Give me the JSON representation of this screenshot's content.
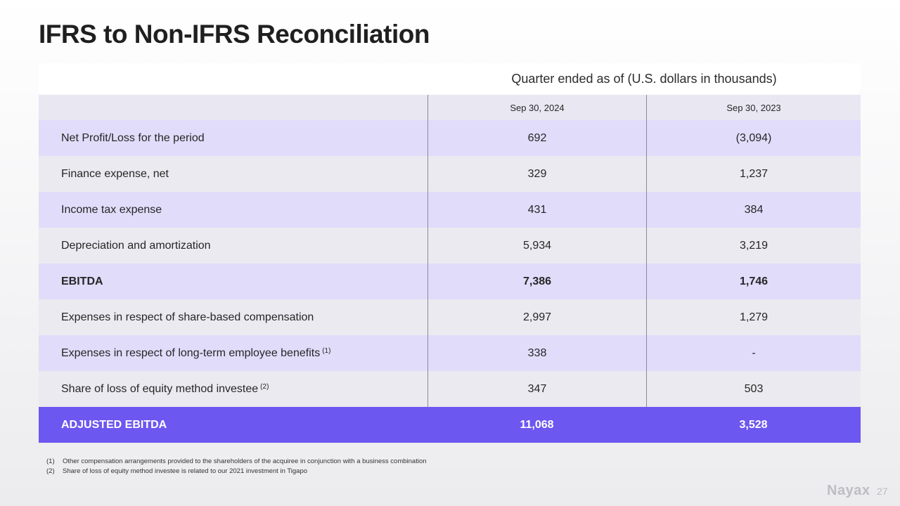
{
  "title": "IFRS to Non-IFRS Reconciliation",
  "table": {
    "caption": "Quarter ended as of (U.S. dollars in thousands)",
    "columns": [
      "Sep 30, 2024",
      "Sep 30, 2023"
    ],
    "rows": [
      {
        "label": "Net Profit/Loss for the period",
        "sup": "",
        "v1": "692",
        "v2": "(3,094)"
      },
      {
        "label": "Finance expense, net",
        "sup": "",
        "v1": "329",
        "v2": "1,237"
      },
      {
        "label": "Income tax expense",
        "sup": "",
        "v1": "431",
        "v2": "384"
      },
      {
        "label": "Depreciation and amortization",
        "sup": "",
        "v1": "5,934",
        "v2": "3,219"
      },
      {
        "label": "EBITDA",
        "sup": "",
        "v1": "7,386",
        "v2": "1,746"
      },
      {
        "label": "Expenses in respect of share-based compensation",
        "sup": "",
        "v1": "2,997",
        "v2": "1,279"
      },
      {
        "label": "Expenses in respect of long-term employee benefits",
        "sup": "(1)",
        "v1": "338",
        "v2": "-"
      },
      {
        "label": "Share of loss of equity method investee",
        "sup": "(2)",
        "v1": "347",
        "v2": "503"
      }
    ],
    "total": {
      "label": "ADJUSTED EBITDA",
      "v1": "11,068",
      "v2": "3,528"
    }
  },
  "footnotes": [
    {
      "num": "(1)",
      "text": "Other compensation arrangements provided to the shareholders of the acquiree in conjunction with a business combination"
    },
    {
      "num": "(2)",
      "text": "Share of loss of equity method investee is related to our 2021 investment in Tigapo"
    }
  ],
  "brand": {
    "logo_text": "Nayax",
    "page_number": "27"
  },
  "colors": {
    "accent": "#6c57f0",
    "row_highlight": "#e1dcfa",
    "row_alt": "#ebeaf0"
  }
}
